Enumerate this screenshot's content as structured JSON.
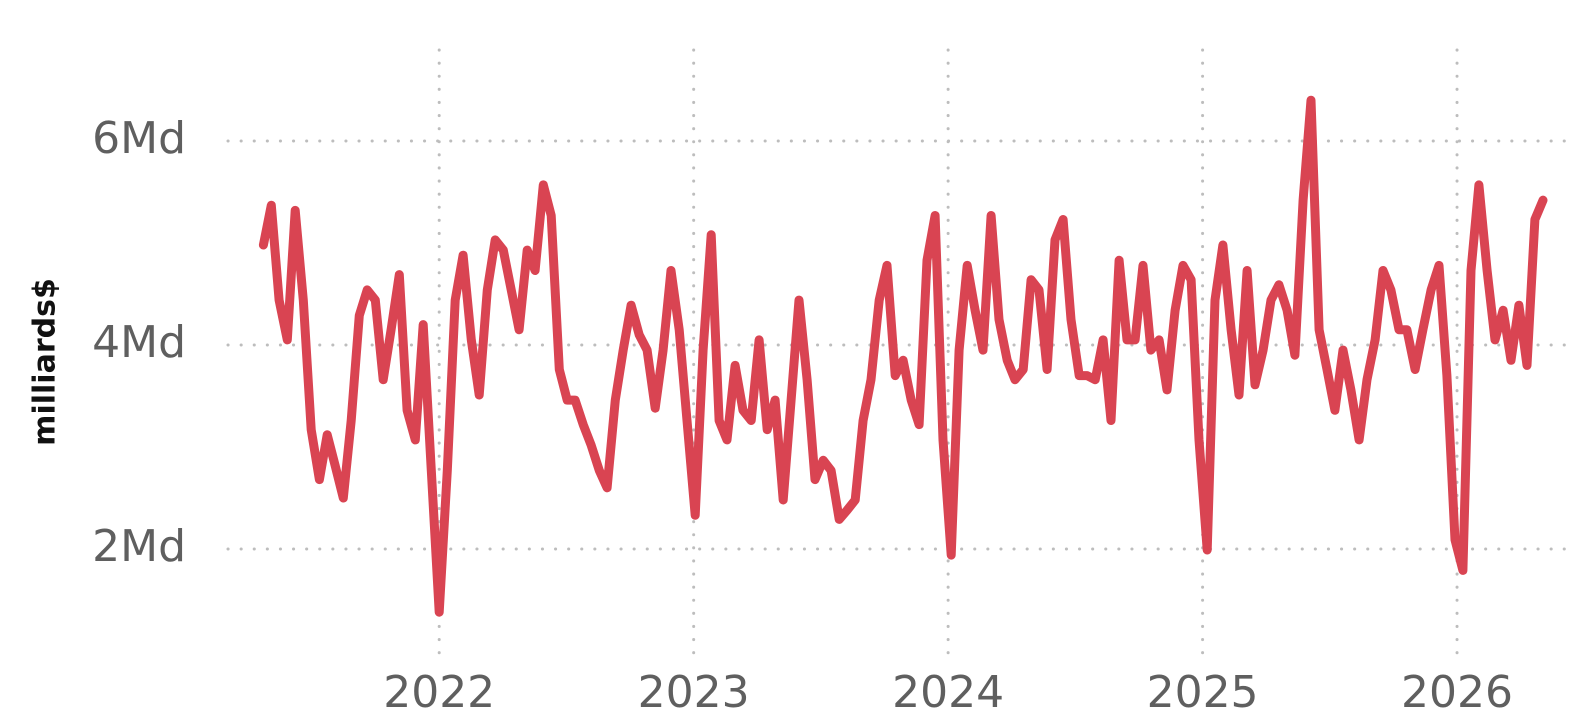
{
  "chart_data": {
    "type": "line",
    "ylabel": "milliards$",
    "color": "#d94452",
    "grid": true,
    "xlim": [
      2021.17,
      2026.44
    ],
    "xticks": [
      2022,
      2023,
      2024,
      2025,
      2026
    ],
    "ylim": [
      1,
      7
    ],
    "yticks": [
      {
        "value": 2,
        "label": "2Md"
      },
      {
        "value": 4,
        "label": "4Md"
      },
      {
        "value": 6,
        "label": "6Md"
      }
    ],
    "x": [
      2021.309,
      2021.34,
      2021.371,
      2021.403,
      2021.434,
      2021.466,
      2021.497,
      2021.529,
      2021.56,
      2021.591,
      2021.623,
      2021.654,
      2021.686,
      2021.717,
      2021.749,
      2021.78,
      2021.811,
      2021.843,
      2021.874,
      2021.906,
      2021.937,
      2021.969,
      2022.0,
      2022.032,
      2022.063,
      2022.094,
      2022.126,
      2022.157,
      2022.189,
      2022.22,
      2022.252,
      2022.283,
      2022.314,
      2022.346,
      2022.377,
      2022.409,
      2022.44,
      2022.472,
      2022.503,
      2022.534,
      2022.566,
      2022.597,
      2022.629,
      2022.66,
      2022.692,
      2022.723,
      2022.754,
      2022.786,
      2022.817,
      2022.849,
      2022.88,
      2022.911,
      2022.943,
      2022.974,
      2023.006,
      2023.037,
      2023.069,
      2023.1,
      2023.131,
      2023.163,
      2023.194,
      2023.226,
      2023.257,
      2023.289,
      2023.32,
      2023.352,
      2023.383,
      2023.414,
      2023.446,
      2023.477,
      2023.509,
      2023.54,
      2023.572,
      2023.603,
      2023.635,
      2023.666,
      2023.697,
      2023.729,
      2023.76,
      2023.792,
      2023.823,
      2023.855,
      2023.886,
      2023.917,
      2023.949,
      2023.98,
      2024.012,
      2024.043,
      2024.075,
      2024.106,
      2024.137,
      2024.169,
      2024.2,
      2024.232,
      2024.263,
      2024.295,
      2024.326,
      2024.357,
      2024.389,
      2024.42,
      2024.452,
      2024.483,
      2024.515,
      2024.546,
      2024.578,
      2024.609,
      2024.64,
      2024.672,
      2024.703,
      2024.735,
      2024.766,
      2024.797,
      2024.829,
      2024.86,
      2024.892,
      2024.923,
      2024.955,
      2024.986,
      2025.018,
      2025.049,
      2025.08,
      2025.112,
      2025.143,
      2025.175,
      2025.206,
      2025.238,
      2025.269,
      2025.3,
      2025.332,
      2025.363,
      2025.395,
      2025.426,
      2025.458,
      2025.489,
      2025.52,
      2025.552,
      2025.583,
      2025.615,
      2025.646,
      2025.678,
      2025.709,
      2025.74,
      2025.772,
      2025.803,
      2025.835,
      2025.866,
      2025.898,
      2025.929,
      2025.96,
      2025.992,
      2026.023,
      2026.055,
      2026.086,
      2026.118,
      2026.149,
      2026.181,
      2026.212,
      2026.243,
      2026.275,
      2026.306,
      2026.338
    ],
    "values": [
      4.98,
      5.37,
      4.44,
      4.05,
      5.32,
      4.44,
      3.17,
      2.68,
      3.12,
      2.82,
      2.5,
      3.26,
      4.29,
      4.54,
      4.44,
      3.66,
      4.15,
      4.69,
      3.36,
      3.07,
      4.2,
      2.77,
      1.38,
      2.77,
      4.44,
      4.88,
      4.05,
      3.51,
      4.54,
      5.03,
      4.93,
      4.54,
      4.15,
      4.93,
      4.73,
      5.57,
      5.27,
      3.76,
      3.46,
      3.46,
      3.22,
      3.02,
      2.77,
      2.6,
      3.46,
      3.95,
      4.39,
      4.1,
      3.95,
      3.38,
      3.95,
      4.73,
      4.15,
      3.26,
      2.33,
      3.95,
      5.08,
      3.26,
      3.07,
      3.8,
      3.36,
      3.26,
      4.05,
      3.17,
      3.46,
      2.48,
      3.46,
      4.44,
      3.66,
      2.68,
      2.87,
      2.77,
      2.29,
      2.38,
      2.48,
      3.26,
      3.66,
      4.44,
      4.78,
      3.7,
      3.85,
      3.46,
      3.22,
      4.83,
      5.27,
      3.07,
      1.94,
      3.95,
      4.78,
      4.34,
      3.95,
      5.27,
      4.25,
      3.85,
      3.66,
      3.76,
      4.64,
      4.54,
      3.76,
      5.03,
      5.23,
      4.25,
      3.7,
      3.7,
      3.66,
      4.05,
      3.26,
      4.83,
      4.05,
      4.05,
      4.78,
      3.95,
      4.05,
      3.56,
      4.34,
      4.78,
      4.64,
      3.07,
      1.99,
      4.44,
      4.98,
      4.15,
      3.51,
      4.73,
      3.61,
      3.95,
      4.44,
      4.59,
      4.34,
      3.9,
      5.42,
      6.4,
      4.15,
      3.76,
      3.36,
      3.95,
      3.56,
      3.07,
      3.66,
      4.05,
      4.73,
      4.54,
      4.15,
      4.15,
      3.76,
      4.15,
      4.54,
      4.78,
      3.7,
      2.09,
      1.79,
      4.73,
      5.57,
      4.73,
      4.05,
      4.34,
      3.85,
      4.39,
      3.8,
      5.23,
      5.42
    ]
  }
}
